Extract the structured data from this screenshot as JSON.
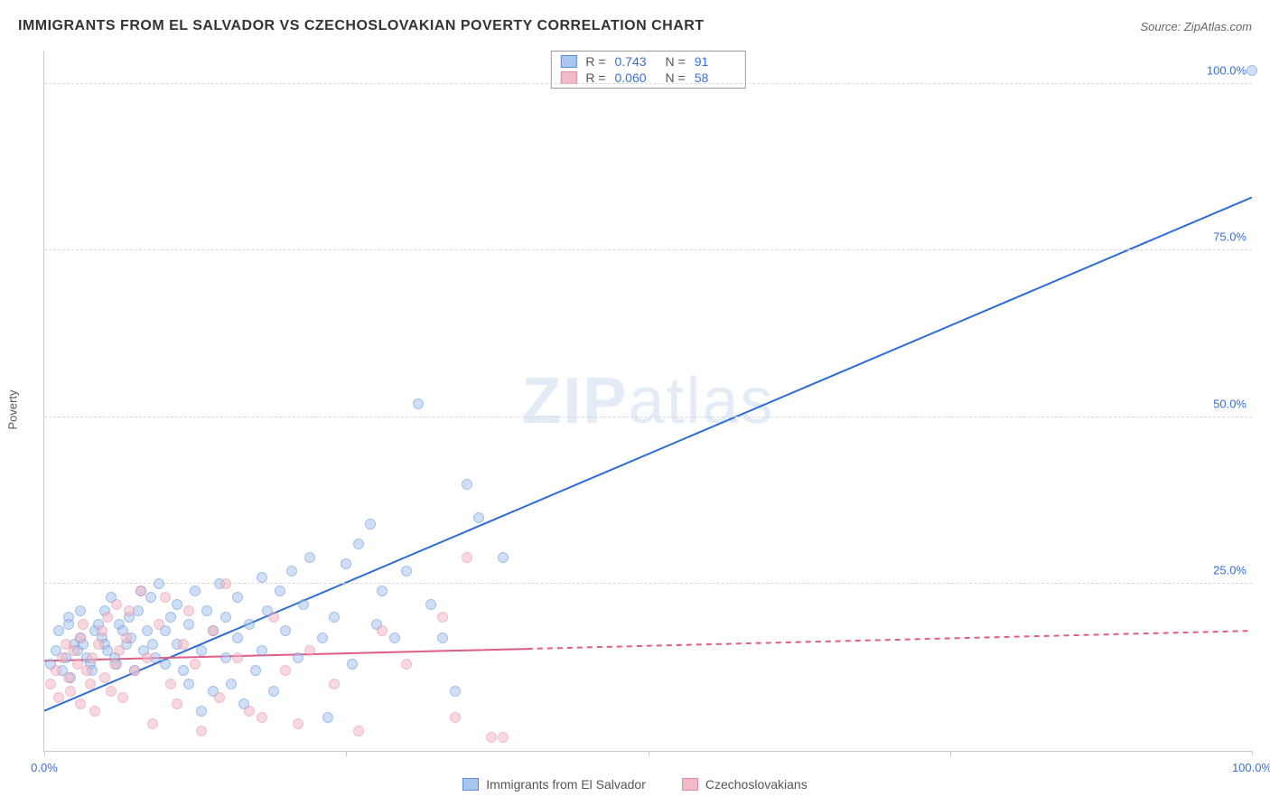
{
  "title": "IMMIGRANTS FROM EL SALVADOR VS CZECHOSLOVAKIAN POVERTY CORRELATION CHART",
  "source": "Source: ZipAtlas.com",
  "ylabel": "Poverty",
  "watermark_a": "ZIP",
  "watermark_b": "atlas",
  "chart": {
    "type": "scatter",
    "xlim": [
      0,
      100
    ],
    "ylim": [
      0,
      105
    ],
    "xticks": [
      0,
      25,
      50,
      75,
      100
    ],
    "yticks": [
      25,
      50,
      75,
      100
    ],
    "xtick_labels": [
      "0.0%",
      "",
      "",
      "",
      "100.0%"
    ],
    "ytick_labels": [
      "25.0%",
      "50.0%",
      "75.0%",
      "100.0%"
    ],
    "tick_color": "#3b6fd6",
    "grid_color": "#d8d8d8",
    "background_color": "#ffffff",
    "marker_radius": 6,
    "marker_opacity": 0.55
  },
  "series": [
    {
      "name": "Immigrants from El Salvador",
      "color_fill": "#a8c6ee",
      "color_stroke": "#5a8bd6",
      "trend_color": "#2e6cd6",
      "trend_width": 2,
      "trend_dash_after": 100,
      "trend": {
        "x1": 0,
        "y1": 6,
        "x2": 100,
        "y2": 83
      },
      "R": "0.743",
      "N": "91",
      "points": [
        [
          0.5,
          13
        ],
        [
          1,
          15
        ],
        [
          1.2,
          18
        ],
        [
          1.5,
          12
        ],
        [
          1.8,
          14
        ],
        [
          2,
          20
        ],
        [
          2,
          19
        ],
        [
          2.2,
          11
        ],
        [
          2.5,
          16
        ],
        [
          2.8,
          15
        ],
        [
          3,
          17
        ],
        [
          3,
          21
        ],
        [
          3.2,
          16
        ],
        [
          3.5,
          14
        ],
        [
          3.8,
          13
        ],
        [
          4,
          12
        ],
        [
          4.2,
          18
        ],
        [
          4.5,
          19
        ],
        [
          4.8,
          17
        ],
        [
          5,
          21
        ],
        [
          5,
          16
        ],
        [
          5.2,
          15
        ],
        [
          5.5,
          23
        ],
        [
          5.8,
          14
        ],
        [
          6,
          13
        ],
        [
          6.2,
          19
        ],
        [
          6.5,
          18
        ],
        [
          6.8,
          16
        ],
        [
          7,
          20
        ],
        [
          7.2,
          17
        ],
        [
          7.5,
          12
        ],
        [
          7.8,
          21
        ],
        [
          8,
          24
        ],
        [
          8.2,
          15
        ],
        [
          8.5,
          18
        ],
        [
          8.8,
          23
        ],
        [
          9,
          16
        ],
        [
          9.2,
          14
        ],
        [
          9.5,
          25
        ],
        [
          10,
          18
        ],
        [
          10,
          13
        ],
        [
          10.5,
          20
        ],
        [
          11,
          16
        ],
        [
          11,
          22
        ],
        [
          11.5,
          12
        ],
        [
          12,
          19
        ],
        [
          12,
          10
        ],
        [
          12.5,
          24
        ],
        [
          13,
          15
        ],
        [
          13,
          6
        ],
        [
          13.5,
          21
        ],
        [
          14,
          18
        ],
        [
          14,
          9
        ],
        [
          14.5,
          25
        ],
        [
          15,
          20
        ],
        [
          15,
          14
        ],
        [
          15.5,
          10
        ],
        [
          16,
          17
        ],
        [
          16,
          23
        ],
        [
          16.5,
          7
        ],
        [
          17,
          19
        ],
        [
          17.5,
          12
        ],
        [
          18,
          26
        ],
        [
          18,
          15
        ],
        [
          18.5,
          21
        ],
        [
          19,
          9
        ],
        [
          19.5,
          24
        ],
        [
          20,
          18
        ],
        [
          20.5,
          27
        ],
        [
          21,
          14
        ],
        [
          21.5,
          22
        ],
        [
          22,
          29
        ],
        [
          23,
          17
        ],
        [
          23.5,
          5
        ],
        [
          24,
          20
        ],
        [
          25,
          28
        ],
        [
          25.5,
          13
        ],
        [
          26,
          31
        ],
        [
          27,
          34
        ],
        [
          27.5,
          19
        ],
        [
          28,
          24
        ],
        [
          29,
          17
        ],
        [
          30,
          27
        ],
        [
          31,
          52
        ],
        [
          32,
          22
        ],
        [
          33,
          17
        ],
        [
          34,
          9
        ],
        [
          35,
          40
        ],
        [
          36,
          35
        ],
        [
          38,
          29
        ],
        [
          100,
          102
        ]
      ]
    },
    {
      "name": "Czechoslovakians",
      "color_fill": "#f2b9c6",
      "color_stroke": "#e28aa0",
      "trend_color": "#e05d85",
      "trend_width": 2,
      "trend_dash_after": 40,
      "trend": {
        "x1": 0,
        "y1": 13.5,
        "x2": 100,
        "y2": 18
      },
      "R": "0.060",
      "N": "58",
      "points": [
        [
          0.5,
          10
        ],
        [
          1,
          12
        ],
        [
          1.2,
          8
        ],
        [
          1.5,
          14
        ],
        [
          1.8,
          16
        ],
        [
          2,
          11
        ],
        [
          2.2,
          9
        ],
        [
          2.5,
          15
        ],
        [
          2.8,
          13
        ],
        [
          3,
          17
        ],
        [
          3,
          7
        ],
        [
          3.2,
          19
        ],
        [
          3.5,
          12
        ],
        [
          3.8,
          10
        ],
        [
          4,
          14
        ],
        [
          4.2,
          6
        ],
        [
          4.5,
          16
        ],
        [
          4.8,
          18
        ],
        [
          5,
          11
        ],
        [
          5.2,
          20
        ],
        [
          5.5,
          9
        ],
        [
          5.8,
          13
        ],
        [
          6,
          22
        ],
        [
          6.2,
          15
        ],
        [
          6.5,
          8
        ],
        [
          6.8,
          17
        ],
        [
          7,
          21
        ],
        [
          7.5,
          12
        ],
        [
          8,
          24
        ],
        [
          8.5,
          14
        ],
        [
          9,
          4
        ],
        [
          9.5,
          19
        ],
        [
          10,
          23
        ],
        [
          10.5,
          10
        ],
        [
          11,
          7
        ],
        [
          11.5,
          16
        ],
        [
          12,
          21
        ],
        [
          12.5,
          13
        ],
        [
          13,
          3
        ],
        [
          14,
          18
        ],
        [
          14.5,
          8
        ],
        [
          15,
          25
        ],
        [
          16,
          14
        ],
        [
          17,
          6
        ],
        [
          18,
          5
        ],
        [
          19,
          20
        ],
        [
          20,
          12
        ],
        [
          21,
          4
        ],
        [
          22,
          15
        ],
        [
          24,
          10
        ],
        [
          26,
          3
        ],
        [
          28,
          18
        ],
        [
          30,
          13
        ],
        [
          33,
          20
        ],
        [
          34,
          5
        ],
        [
          35,
          29
        ],
        [
          37,
          2
        ],
        [
          38,
          2
        ]
      ]
    }
  ],
  "stats_labels": {
    "R": "R =",
    "N": "N ="
  },
  "bottom_legend": [
    {
      "label": "Immigrants from El Salvador",
      "fill": "#a8c6ee",
      "stroke": "#5a8bd6"
    },
    {
      "label": "Czechoslovakians",
      "fill": "#f2b9c6",
      "stroke": "#e28aa0"
    }
  ]
}
